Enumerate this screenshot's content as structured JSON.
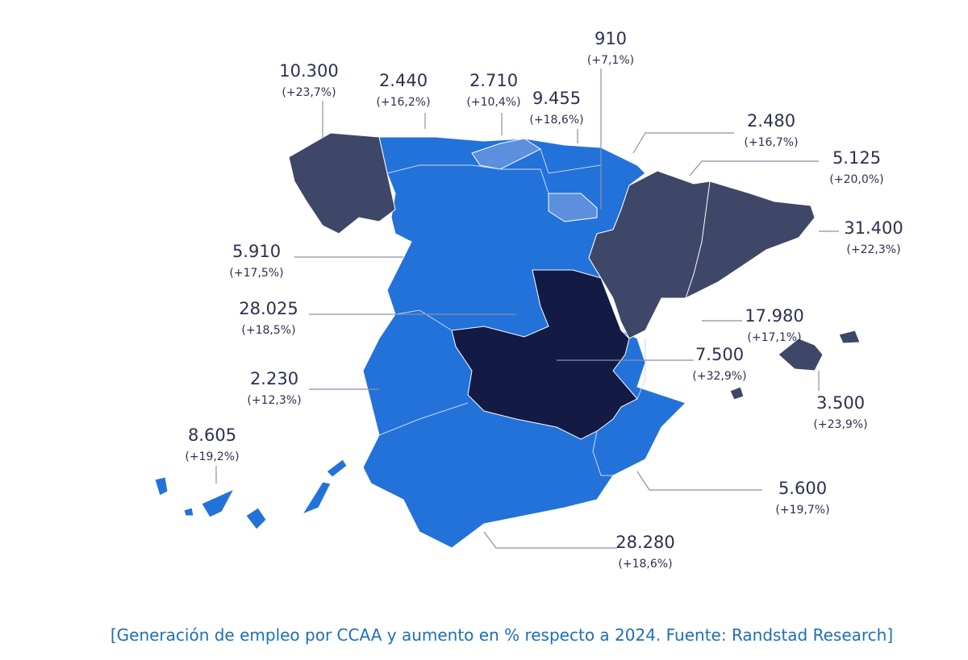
{
  "regions": [
    {
      "value": "10.300",
      "change": "(+23,7%)"
    },
    {
      "value": "2.440",
      "change": "(+16,2%)"
    },
    {
      "value": "2.710",
      "change": "(+10,4%)"
    },
    {
      "value": "9.455",
      "change": "(+18,6%)"
    },
    {
      "value": "910",
      "change": "(+7,1%)"
    },
    {
      "value": "2.480",
      "change": "(+16,7%)"
    },
    {
      "value": "5.125",
      "change": "(+20,0%)"
    },
    {
      "value": "31.400",
      "change": "(+22,3%)"
    },
    {
      "value": "5.910",
      "change": "(+17,5%)"
    },
    {
      "value": "28.025",
      "change": "(+18,5%)"
    },
    {
      "value": "17.980",
      "change": "(+17,1%)"
    },
    {
      "value": "7.500",
      "change": "(+32,9%)"
    },
    {
      "value": "2.230",
      "change": "(+12,3%)"
    },
    {
      "value": "3.500",
      "change": "(+23,9%)"
    },
    {
      "value": "8.605",
      "change": "(+19,2%)"
    },
    {
      "value": "5.600",
      "change": "(+19,7%)"
    },
    {
      "value": "28.280",
      "change": "(+18,6%)"
    }
  ],
  "caption": "[Generación de empleo por CCAA y aumento en % respecto a 2024. Fuente: Randstad Research]"
}
